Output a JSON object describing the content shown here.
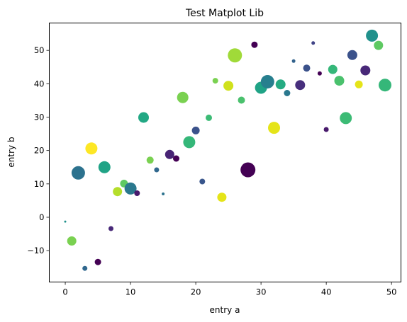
{
  "chart_data": {
    "type": "scatter",
    "title": "Test Matplot Lib",
    "xlabel": "entry a",
    "ylabel": "entry b",
    "xlim": [
      -2.45,
      51.45
    ],
    "ylim": [
      -19.4,
      58.2
    ],
    "xticks": [
      0,
      10,
      20,
      30,
      40,
      50
    ],
    "xtick_labels": [
      "0",
      "10",
      "20",
      "30",
      "40",
      "50"
    ],
    "yticks": [
      -10,
      0,
      10,
      20,
      30,
      40,
      50
    ],
    "ytick_labels": [
      "−10",
      "0",
      "10",
      "20",
      "30",
      "40",
      "50"
    ],
    "grid": false,
    "legend": "none",
    "colormap": "viridis",
    "points": [
      {
        "x": 0,
        "y": -1.3,
        "size": 1.5,
        "color": "#21918c"
      },
      {
        "x": 1,
        "y": -7.1,
        "size": 6.5,
        "color": "#7ad151"
      },
      {
        "x": 2,
        "y": 13.3,
        "size": 9.5,
        "color": "#2c728e"
      },
      {
        "x": 3,
        "y": -15.3,
        "size": 3.5,
        "color": "#31688e"
      },
      {
        "x": 4,
        "y": 20.6,
        "size": 8.5,
        "color": "#fde725"
      },
      {
        "x": 5,
        "y": -13.4,
        "size": 4.5,
        "color": "#440154"
      },
      {
        "x": 6,
        "y": 15.0,
        "size": 8.5,
        "color": "#20a386"
      },
      {
        "x": 7,
        "y": -3.4,
        "size": 3.5,
        "color": "#482878"
      },
      {
        "x": 8,
        "y": 7.7,
        "size": 6.5,
        "color": "#b5de2b"
      },
      {
        "x": 9,
        "y": 10.1,
        "size": 5.5,
        "color": "#5ec962"
      },
      {
        "x": 10,
        "y": 8.6,
        "size": 8.5,
        "color": "#2a788e"
      },
      {
        "x": 11,
        "y": 7.2,
        "size": 4.0,
        "color": "#481a6c"
      },
      {
        "x": 12,
        "y": 29.9,
        "size": 7.5,
        "color": "#22a884"
      },
      {
        "x": 13,
        "y": 17.1,
        "size": 5.0,
        "color": "#7ad151"
      },
      {
        "x": 14,
        "y": 14.2,
        "size": 3.5,
        "color": "#31688e"
      },
      {
        "x": 15,
        "y": 7.0,
        "size": 2.0,
        "color": "#2c728e"
      },
      {
        "x": 16,
        "y": 18.8,
        "size": 6.5,
        "color": "#482475"
      },
      {
        "x": 17,
        "y": 17.6,
        "size": 4.5,
        "color": "#440154"
      },
      {
        "x": 18,
        "y": 35.9,
        "size": 8.0,
        "color": "#7ad151"
      },
      {
        "x": 19,
        "y": 22.5,
        "size": 8.5,
        "color": "#35b779"
      },
      {
        "x": 20,
        "y": 26.0,
        "size": 5.5,
        "color": "#3b528b"
      },
      {
        "x": 21,
        "y": 10.7,
        "size": 4.0,
        "color": "#39568c"
      },
      {
        "x": 22,
        "y": 29.8,
        "size": 4.5,
        "color": "#3cbb75"
      },
      {
        "x": 23,
        "y": 40.9,
        "size": 4.0,
        "color": "#7ad151"
      },
      {
        "x": 24,
        "y": 6.0,
        "size": 6.5,
        "color": "#e5e419"
      },
      {
        "x": 25,
        "y": 39.4,
        "size": 7.0,
        "color": "#d0e11c"
      },
      {
        "x": 26,
        "y": 48.5,
        "size": 10.0,
        "color": "#a0da39"
      },
      {
        "x": 27,
        "y": 35.1,
        "size": 5.0,
        "color": "#4ac16d"
      },
      {
        "x": 28,
        "y": 14.2,
        "size": 10.5,
        "color": "#440154"
      },
      {
        "x": 29,
        "y": 51.7,
        "size": 4.5,
        "color": "#440154"
      },
      {
        "x": 30,
        "y": 38.8,
        "size": 8.5,
        "color": "#20a386"
      },
      {
        "x": 31,
        "y": 40.6,
        "size": 9.5,
        "color": "#277f8e"
      },
      {
        "x": 32,
        "y": 26.8,
        "size": 8.5,
        "color": "#e5e419"
      },
      {
        "x": 33,
        "y": 39.8,
        "size": 7.0,
        "color": "#25ab82"
      },
      {
        "x": 34,
        "y": 37.2,
        "size": 4.5,
        "color": "#2a788e"
      },
      {
        "x": 35,
        "y": 46.8,
        "size": 2.5,
        "color": "#33638d"
      },
      {
        "x": 36,
        "y": 39.6,
        "size": 7.0,
        "color": "#472f7d"
      },
      {
        "x": 37,
        "y": 44.7,
        "size": 5.0,
        "color": "#3b528b"
      },
      {
        "x": 38,
        "y": 52.2,
        "size": 2.5,
        "color": "#414487"
      },
      {
        "x": 39,
        "y": 43.1,
        "size": 3.0,
        "color": "#440154"
      },
      {
        "x": 40,
        "y": 26.3,
        "size": 3.5,
        "color": "#481a6c"
      },
      {
        "x": 41,
        "y": 44.3,
        "size": 6.5,
        "color": "#35b779"
      },
      {
        "x": 42,
        "y": 40.9,
        "size": 7.0,
        "color": "#4ac16d"
      },
      {
        "x": 43,
        "y": 29.7,
        "size": 8.5,
        "color": "#3cbb75"
      },
      {
        "x": 44,
        "y": 48.6,
        "size": 7.0,
        "color": "#3b528b"
      },
      {
        "x": 45,
        "y": 39.8,
        "size": 5.5,
        "color": "#e5e419"
      },
      {
        "x": 46,
        "y": 44.0,
        "size": 7.0,
        "color": "#482878"
      },
      {
        "x": 47,
        "y": 54.4,
        "size": 8.5,
        "color": "#21918c"
      },
      {
        "x": 48,
        "y": 51.5,
        "size": 6.5,
        "color": "#5ec962"
      },
      {
        "x": 49,
        "y": 39.6,
        "size": 9.0,
        "color": "#35b779"
      }
    ]
  }
}
